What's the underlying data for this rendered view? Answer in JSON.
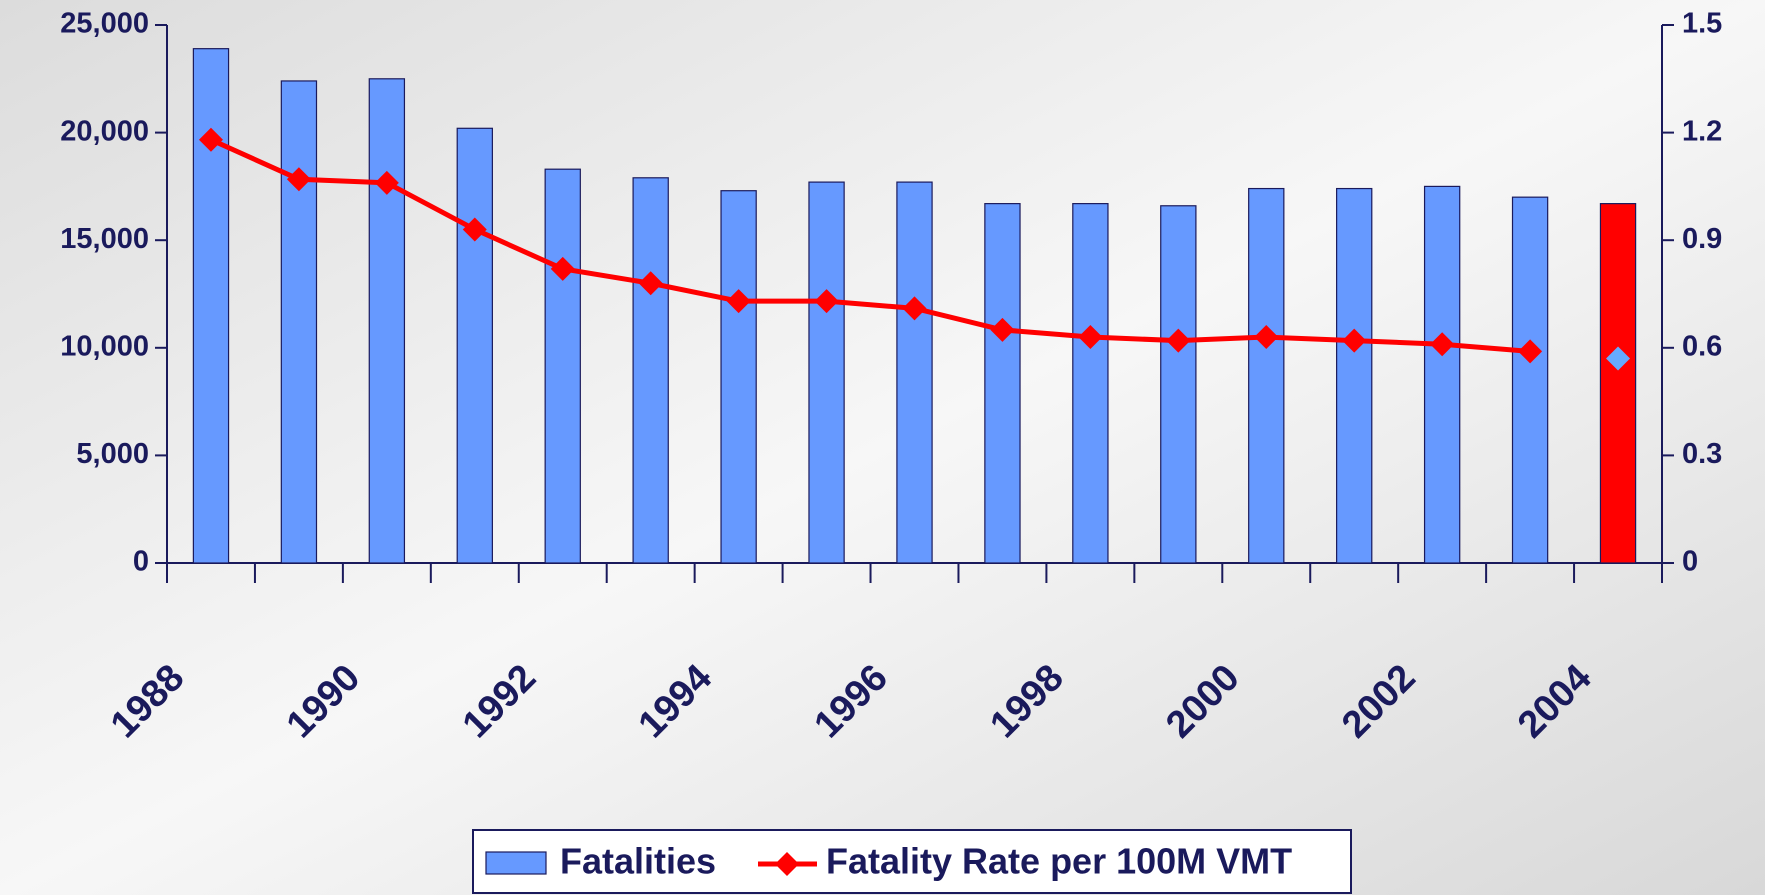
{
  "chart_data": {
    "type": "bar_line",
    "categories": [
      "1988",
      null,
      "1990",
      null,
      "1992",
      null,
      "1994",
      null,
      "1996",
      null,
      "1998",
      null,
      "2000",
      null,
      "2002",
      null,
      "2004"
    ],
    "series": [
      {
        "name": "Fatalities",
        "type": "bar",
        "color": "#6699ff",
        "values": [
          23900,
          22400,
          22500,
          20200,
          18300,
          17900,
          17300,
          17700,
          17700,
          16700,
          16700,
          16600,
          17400,
          17400,
          17500,
          17000,
          16700
        ]
      },
      {
        "name": "Fatality Rate per 100M VMT",
        "type": "line",
        "axis": "y2",
        "color": "#ff0000",
        "values": [
          1.18,
          1.07,
          1.06,
          0.93,
          0.82,
          0.78,
          0.73,
          0.73,
          0.71,
          0.65,
          0.63,
          0.62,
          0.63,
          0.62,
          0.61,
          0.59,
          null
        ]
      }
    ],
    "highlight": {
      "index": 16,
      "bar_color": "#ff0000",
      "rate": 0.57,
      "point_color": "#66aaff"
    },
    "ylim": [
      0,
      25000
    ],
    "yticks": [
      0,
      {
        "value": 5000,
        "label": "5,000"
      },
      {
        "value": 10000,
        "label": "10,000"
      },
      {
        "value": 15000,
        "label": "15,000"
      },
      {
        "value": 20000,
        "label": "20,000"
      },
      {
        "value": 25000,
        "label": "25,000"
      }
    ],
    "y2lim": [
      0,
      1.5
    ],
    "y2ticks": [
      0,
      0.3,
      0.6,
      0.9,
      1.2,
      1.5
    ],
    "legend": "bottom"
  }
}
